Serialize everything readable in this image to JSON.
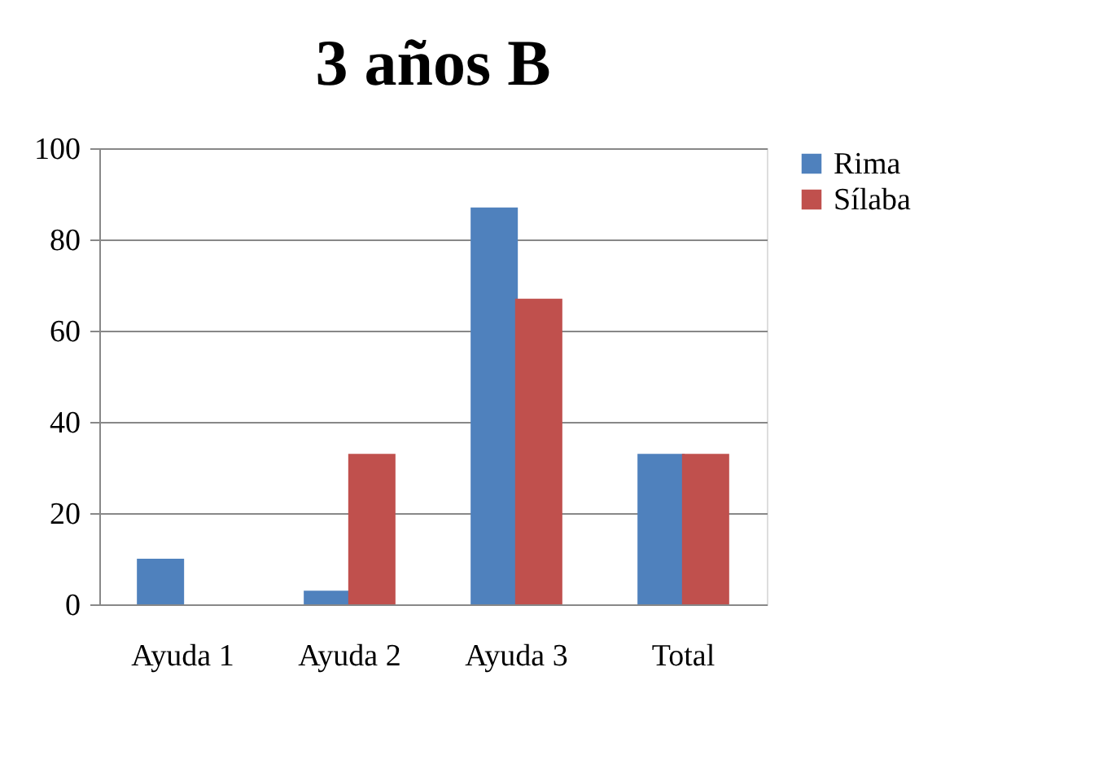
{
  "chart_data": {
    "type": "bar",
    "title": "3 años B",
    "categories": [
      "Ayuda 1",
      "Ayuda 2",
      "Ayuda 3",
      "Total"
    ],
    "series": [
      {
        "name": "Rima",
        "color": "#4f81bd",
        "values": [
          10,
          3,
          87,
          33
        ]
      },
      {
        "name": "Sílaba",
        "color": "#c0504d",
        "values": [
          0,
          33,
          67,
          33
        ]
      }
    ],
    "ylim": [
      0,
      100
    ],
    "yticks": [
      0,
      20,
      40,
      60,
      80,
      100
    ],
    "grid": "y",
    "legend": "right"
  }
}
